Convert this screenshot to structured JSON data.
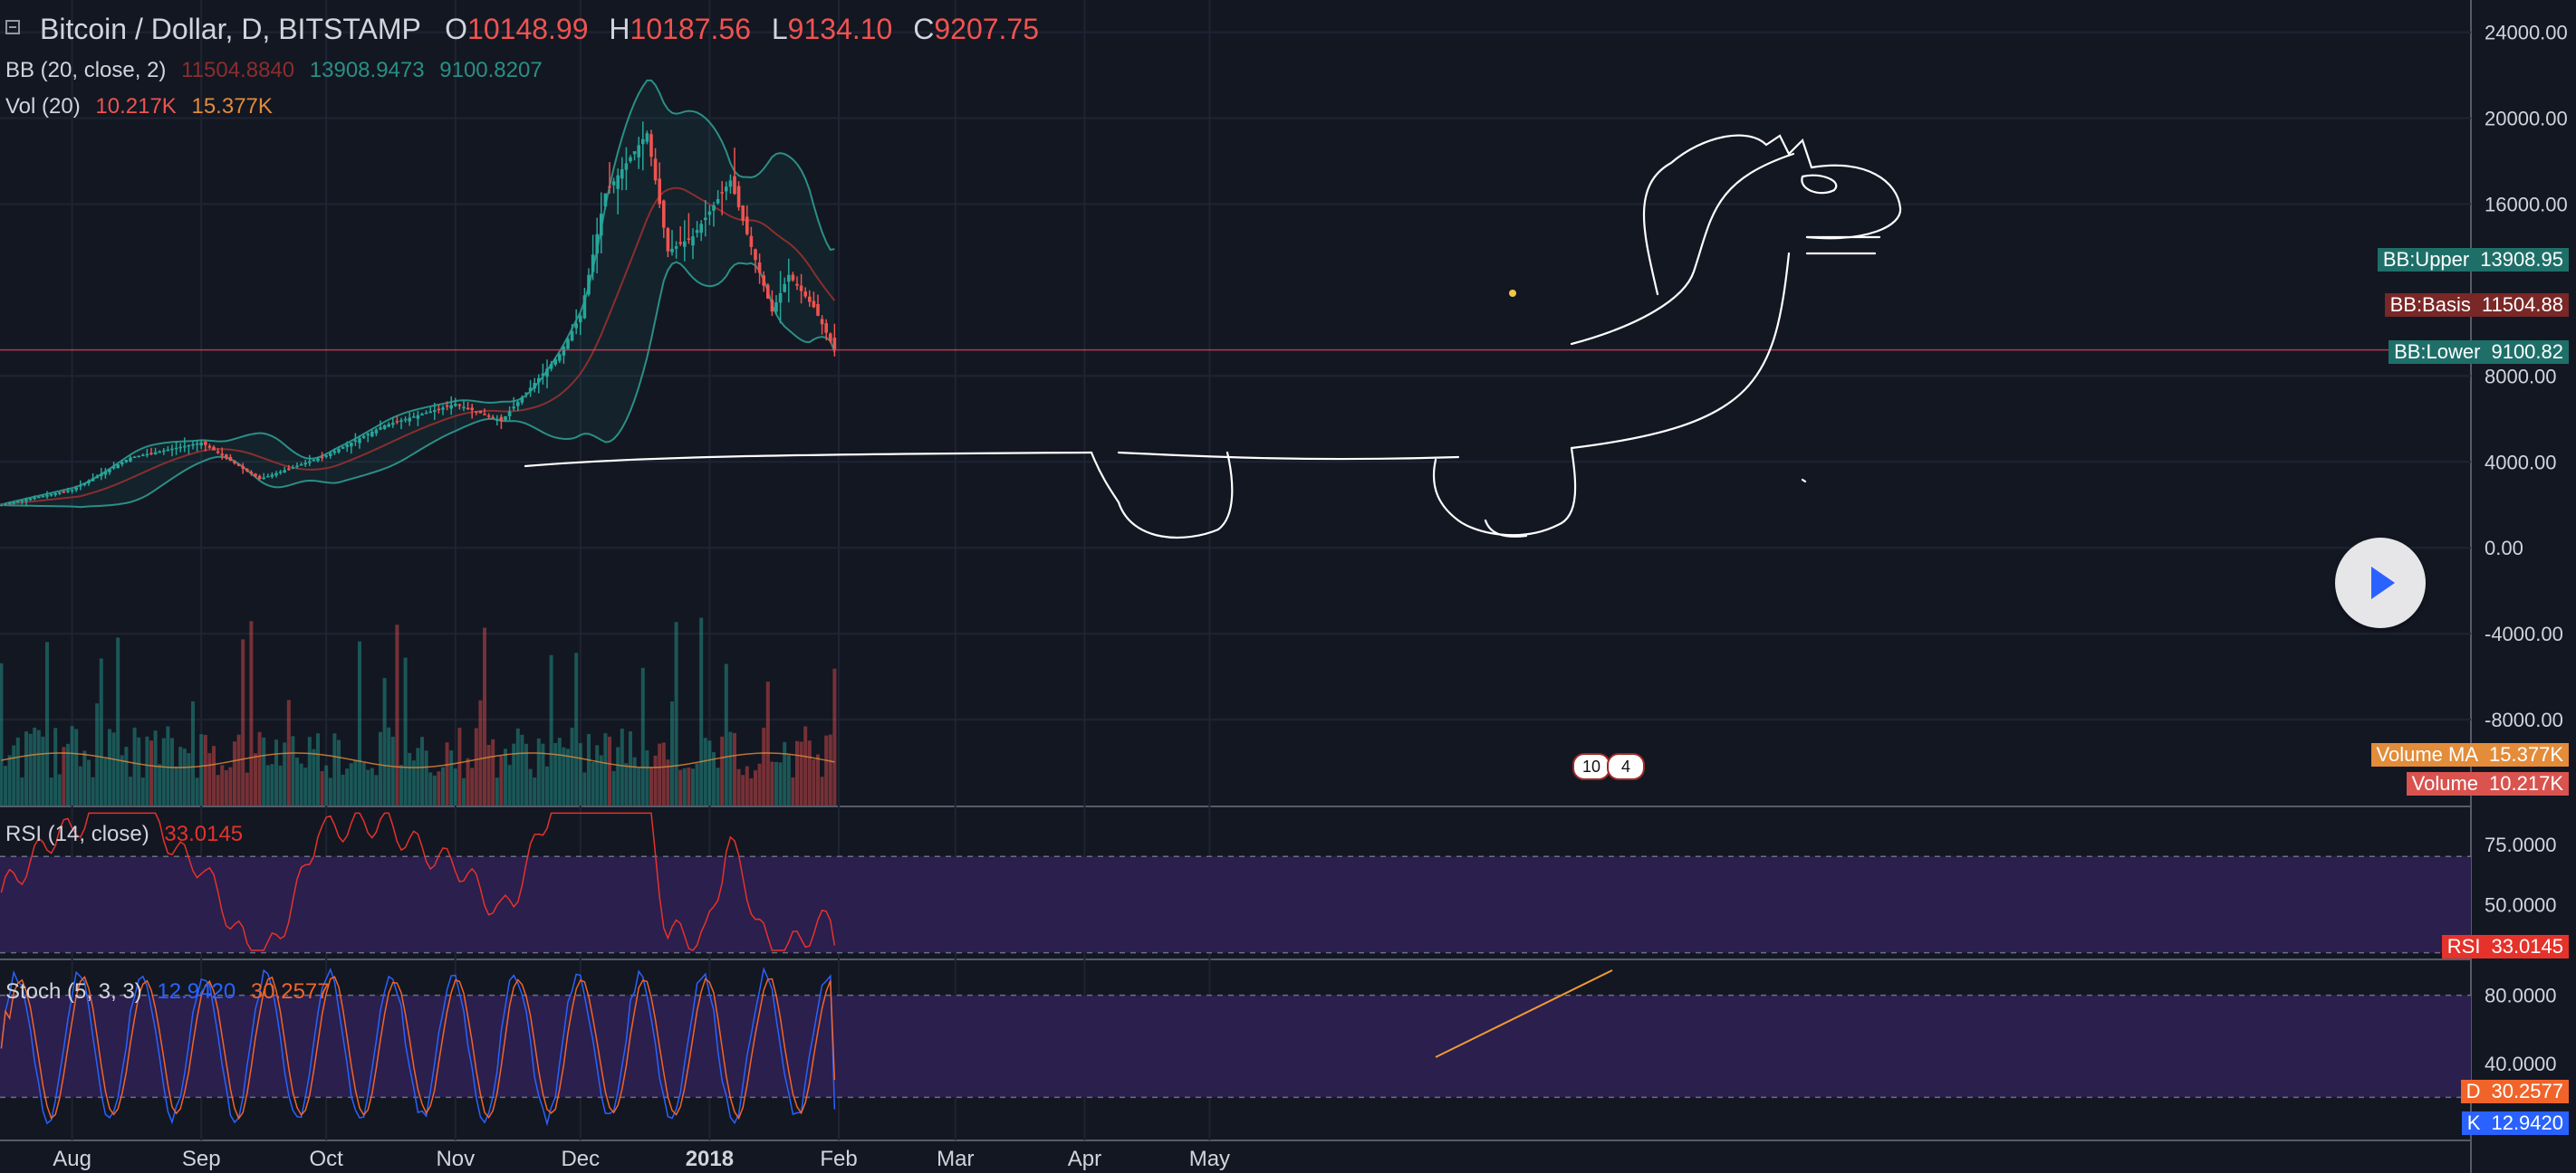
{
  "header": {
    "symbol": "Bitcoin / Dollar, D, BITSTAMP",
    "o_label": "O",
    "o_value": "10148.99",
    "h_label": "H",
    "h_value": "10187.56",
    "l_label": "L",
    "l_value": "9134.10",
    "c_label": "C",
    "c_value": "9207.75"
  },
  "bb_legend": {
    "label": "BB (20, close, 2)",
    "basis": "11504.8840",
    "upper": "13908.9473",
    "lower": "9100.8207"
  },
  "vol_legend": {
    "label": "Vol (20)",
    "volume": "10.217K",
    "ma": "15.377K"
  },
  "rsi_legend": {
    "label": "RSI (14, close)",
    "value": "33.0145"
  },
  "stoch_legend": {
    "label": "Stoch (5, 3, 3)",
    "k": "12.9420",
    "d": "30.2577"
  },
  "price_tags": {
    "bb_upper_name": "BB:Upper",
    "bb_upper_value": "13908.95",
    "bb_basis_name": "BB:Basis",
    "bb_basis_value": "11504.88",
    "bb_lower_name": "BB:Lower",
    "bb_lower_value": "9100.82",
    "vol_ma_name": "Volume MA",
    "vol_ma_value": "15.377K",
    "vol_name": "Volume",
    "vol_value": "10.217K",
    "rsi_name": "RSI",
    "rsi_value": "33.0145",
    "d_name": "D",
    "d_value": "30.2577",
    "k_name": "K",
    "k_value": "12.9420"
  },
  "events": {
    "a": "10",
    "b": "4"
  },
  "colors": {
    "background": "#131722",
    "up": "#26a69a",
    "down": "#ef5350",
    "bb_upper": "#2a8f86",
    "bb_basis": "#8a2e2e",
    "bb_lower": "#2a8f86",
    "vol_ma": "#e38c3a",
    "rsi": "#e5322a",
    "stoch_k": "#2962ff",
    "stoch_d": "#f0642a",
    "axis_text": "#d1d4dc",
    "grid": "#1e2433",
    "band": "#2a1f4d"
  },
  "chart_data": [
    {
      "type": "candlestick",
      "title": "Bitcoin / Dollar, D, BITSTAMP",
      "x_labels": [
        "Aug",
        "Sep",
        "Oct",
        "Nov",
        "Dec",
        "2018",
        "Feb",
        "Mar",
        "Apr",
        "May"
      ],
      "y_ticks": [
        "24000.00",
        "20000.00",
        "16000.00",
        "8000.00",
        "4000.00",
        "0.00",
        "-4000.00",
        "-8000.00"
      ],
      "ylim": [
        -12000,
        25500
      ],
      "grid": true,
      "last_price_line": 9207.75,
      "anchors": [
        {
          "date": "2017-07-15",
          "close": 2000
        },
        {
          "date": "2017-08-01",
          "close": 2700
        },
        {
          "date": "2017-08-15",
          "close": 4200
        },
        {
          "date": "2017-09-01",
          "close": 4900
        },
        {
          "date": "2017-09-15",
          "close": 3200
        },
        {
          "date": "2017-10-01",
          "close": 4300
        },
        {
          "date": "2017-10-15",
          "close": 5700
        },
        {
          "date": "2017-11-01",
          "close": 6700
        },
        {
          "date": "2017-11-12",
          "close": 5900
        },
        {
          "date": "2017-11-26",
          "close": 9000
        },
        {
          "date": "2017-12-01",
          "close": 10800
        },
        {
          "date": "2017-12-07",
          "close": 16500
        },
        {
          "date": "2017-12-17",
          "close": 19300
        },
        {
          "date": "2017-12-22",
          "close": 13800
        },
        {
          "date": "2017-12-28",
          "close": 14500
        },
        {
          "date": "2018-01-06",
          "close": 17100
        },
        {
          "date": "2018-01-10",
          "close": 14600
        },
        {
          "date": "2018-01-16",
          "close": 11000
        },
        {
          "date": "2018-01-20",
          "close": 12700
        },
        {
          "date": "2018-01-26",
          "close": 11200
        },
        {
          "date": "2018-01-31",
          "close": 9207.75
        }
      ],
      "bollinger": {
        "upper": 13908.95,
        "basis": 11504.88,
        "lower": 9100.82
      }
    },
    {
      "type": "bar",
      "title": "Vol (20)",
      "last_volume": "10.217K",
      "volume_ma": "15.377K"
    },
    {
      "type": "line",
      "title": "RSI (14, close)",
      "y_ticks": [
        "75.0000",
        "50.0000"
      ],
      "ylim": [
        28,
        90
      ],
      "band": [
        30,
        70
      ],
      "last_value": 33.0145
    },
    {
      "type": "line",
      "title": "Stoch (5, 3, 3)",
      "y_ticks": [
        "80.0000",
        "40.0000"
      ],
      "ylim": [
        0,
        100
      ],
      "band": [
        20,
        80
      ],
      "series": [
        {
          "name": "K",
          "last_value": 12.942
        },
        {
          "name": "D",
          "last_value": 30.2577
        }
      ]
    }
  ]
}
